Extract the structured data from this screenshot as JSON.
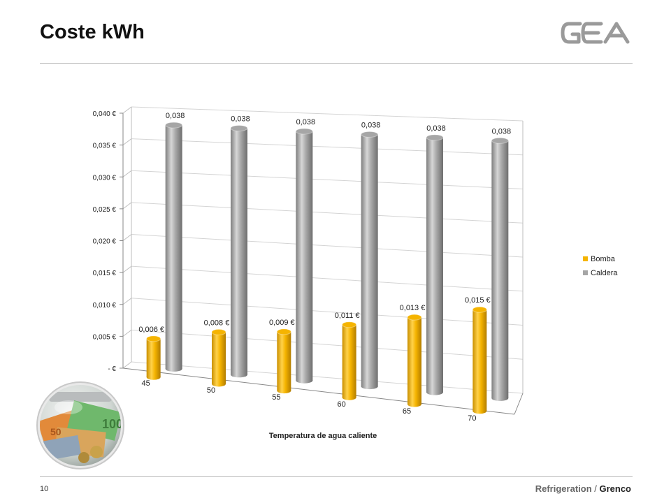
{
  "page": {
    "title": "Coste kWh",
    "page_number": "10",
    "footer_part1": "Refrigeration",
    "footer_sep": " / ",
    "footer_part2": "Grenco"
  },
  "colors": {
    "bomba": "#f5b400",
    "caldera": "#a6a6a6",
    "grid": "#d0d0d0"
  },
  "chart_data": {
    "type": "bar",
    "categories": [
      "45",
      "50",
      "55",
      "60",
      "65",
      "70"
    ],
    "series": [
      {
        "name": "Bomba",
        "values": [
          0.006,
          0.008,
          0.009,
          0.011,
          0.013,
          0.015
        ],
        "labels": [
          "0,006 €",
          "0,008 €",
          "0,009 €",
          "0,011 €",
          "0,013 €",
          "0,015 €"
        ]
      },
      {
        "name": "Caldera",
        "values": [
          0.038,
          0.038,
          0.038,
          0.038,
          0.038,
          0.038
        ],
        "labels": [
          "0,038",
          "0,038",
          "0,038",
          "0,038",
          "0,038",
          "0,038"
        ]
      }
    ],
    "title": "",
    "xlabel": "Temperatura de agua caliente",
    "ylabel": "",
    "ylim": [
      0,
      0.04
    ],
    "ytick_values": [
      0,
      0.005,
      0.01,
      0.015,
      0.02,
      0.025,
      0.03,
      0.035,
      0.04
    ],
    "ytick_labels": [
      "-  €",
      "0,005 €",
      "0,010 €",
      "0,015 €",
      "0,020 €",
      "0,025 €",
      "0,030 €",
      "0,035 €",
      "0,040 €"
    ],
    "grid": true,
    "legend": "right",
    "style": "3d-cylinder"
  }
}
